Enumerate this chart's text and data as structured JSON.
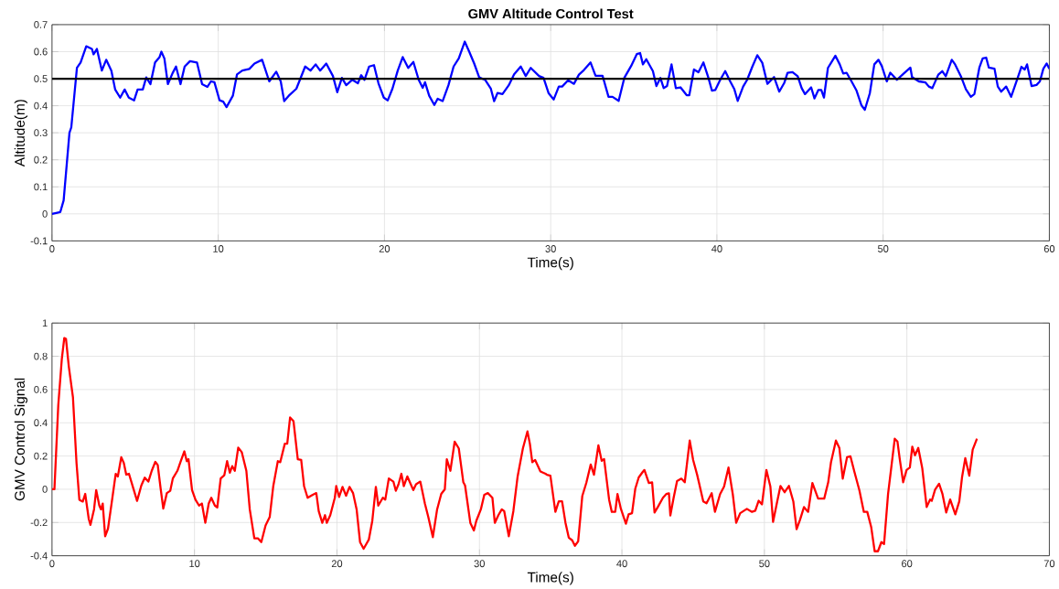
{
  "chart_data": [
    {
      "type": "line",
      "title": "GMV Altitude Control Test",
      "xlabel": "Time(s)",
      "ylabel": "Altitude(m)",
      "grid": true,
      "xlim": [
        0,
        60
      ],
      "ylim": [
        -0.1,
        0.7
      ],
      "xticks": [
        0,
        10,
        20,
        30,
        40,
        50,
        60
      ],
      "yticks": [
        -0.1,
        0,
        0.1,
        0.2,
        0.3,
        0.4,
        0.5,
        0.6,
        0.7
      ],
      "x": [
        0,
        0.5,
        0.7,
        1.05,
        1.16,
        1.5,
        1.72,
        2.06,
        2.4,
        2.5,
        2.7,
        3.0,
        3.26,
        3.57,
        3.8,
        4.1,
        4.37,
        4.62,
        4.94,
        5.15,
        5.46,
        5.67,
        5.92,
        6.2,
        6.47,
        6.58,
        6.76,
        6.97,
        7.25,
        7.46,
        7.73,
        7.98,
        8.3,
        8.72,
        9.03,
        9.35,
        9.56,
        9.77,
        10.08,
        10.3,
        10.5,
        10.88,
        11.13,
        11.45,
        11.87,
        12.18,
        12.64,
        13.07,
        13.49,
        13.76,
        13.97,
        14.29,
        14.7,
        15.23,
        15.55,
        15.86,
        16.13,
        16.5,
        16.9,
        17.16,
        17.44,
        17.7,
        18.07,
        18.4,
        18.6,
        18.8,
        19.08,
        19.37,
        19.64,
        19.96,
        20.2,
        20.48,
        20.8,
        21.1,
        21.43,
        21.74,
        22.06,
        22.3,
        22.44,
        22.69,
        23.0,
        23.2,
        23.5,
        23.85,
        24.16,
        24.47,
        24.83,
        25.1,
        25.4,
        25.7,
        26.05,
        26.4,
        26.6,
        26.8,
        27.1,
        27.48,
        27.8,
        28.2,
        28.5,
        28.8,
        29.3,
        29.57,
        29.88,
        30.18,
        30.49,
        30.69,
        31.05,
        31.4,
        31.7,
        32.0,
        32.4,
        32.7,
        33.12,
        33.48,
        33.72,
        34.09,
        34.43,
        34.84,
        35.18,
        35.38,
        35.55,
        35.75,
        36.15,
        36.36,
        36.6,
        36.8,
        37.0,
        37.27,
        37.53,
        37.81,
        38.18,
        38.34,
        38.62,
        38.89,
        39.19,
        39.49,
        39.7,
        39.9,
        40.2,
        40.5,
        40.8,
        41.05,
        41.25,
        41.58,
        41.82,
        42.13,
        42.43,
        42.73,
        43.04,
        43.44,
        43.75,
        44.05,
        44.25,
        44.55,
        44.86,
        45.1,
        45.3,
        45.67,
        45.87,
        46.1,
        46.28,
        46.44,
        46.68,
        46.88,
        47.13,
        47.39,
        47.6,
        47.8,
        48.1,
        48.4,
        48.7,
        48.9,
        49.2,
        49.47,
        49.72,
        49.92,
        50.22,
        50.43,
        50.83,
        51.24,
        51.64,
        51.74,
        52.15,
        52.55,
        52.75,
        52.96,
        53.32,
        53.56,
        53.77,
        54.13,
        54.33,
        54.68,
        54.98,
        55.28,
        55.49,
        55.79,
        55.99,
        56.2,
        56.36,
        56.7,
        56.9,
        57.1,
        57.4,
        57.7,
        58.02,
        58.32,
        58.52,
        58.66,
        58.93,
        59.23,
        59.43,
        59.64,
        59.84,
        60.0
      ],
      "series": [
        {
          "color": "#0000ff",
          "values": [
            0,
            0.007,
            0.05,
            0.3,
            0.32,
            0.54,
            0.56,
            0.62,
            0.61,
            0.59,
            0.61,
            0.53,
            0.57,
            0.53,
            0.46,
            0.43,
            0.46,
            0.43,
            0.42,
            0.46,
            0.46,
            0.505,
            0.48,
            0.56,
            0.58,
            0.6,
            0.575,
            0.48,
            0.52,
            0.545,
            0.48,
            0.545,
            0.565,
            0.56,
            0.48,
            0.47,
            0.49,
            0.487,
            0.42,
            0.415,
            0.395,
            0.437,
            0.516,
            0.53,
            0.536,
            0.556,
            0.57,
            0.49,
            0.526,
            0.49,
            0.417,
            0.44,
            0.463,
            0.545,
            0.53,
            0.553,
            0.53,
            0.556,
            0.51,
            0.45,
            0.503,
            0.476,
            0.496,
            0.483,
            0.513,
            0.496,
            0.545,
            0.55,
            0.483,
            0.43,
            0.42,
            0.463,
            0.53,
            0.58,
            0.54,
            0.562,
            0.496,
            0.466,
            0.487,
            0.437,
            0.403,
            0.426,
            0.417,
            0.476,
            0.545,
            0.575,
            0.637,
            0.6,
            0.556,
            0.505,
            0.496,
            0.463,
            0.417,
            0.447,
            0.443,
            0.476,
            0.516,
            0.545,
            0.51,
            0.54,
            0.51,
            0.503,
            0.446,
            0.423,
            0.471,
            0.471,
            0.494,
            0.481,
            0.515,
            0.532,
            0.56,
            0.511,
            0.511,
            0.433,
            0.433,
            0.418,
            0.503,
            0.547,
            0.591,
            0.595,
            0.553,
            0.572,
            0.528,
            0.473,
            0.503,
            0.465,
            0.473,
            0.553,
            0.465,
            0.468,
            0.439,
            0.439,
            0.534,
            0.524,
            0.56,
            0.503,
            0.456,
            0.458,
            0.496,
            0.528,
            0.49,
            0.461,
            0.418,
            0.471,
            0.496,
            0.544,
            0.587,
            0.559,
            0.481,
            0.506,
            0.452,
            0.484,
            0.522,
            0.524,
            0.509,
            0.465,
            0.443,
            0.468,
            0.427,
            0.458,
            0.458,
            0.43,
            0.54,
            0.56,
            0.585,
            0.553,
            0.519,
            0.522,
            0.49,
            0.456,
            0.401,
            0.385,
            0.446,
            0.553,
            0.57,
            0.547,
            0.49,
            0.522,
            0.496,
            0.519,
            0.541,
            0.506,
            0.49,
            0.486,
            0.471,
            0.465,
            0.515,
            0.528,
            0.509,
            0.57,
            0.553,
            0.509,
            0.461,
            0.433,
            0.443,
            0.541,
            0.575,
            0.578,
            0.541,
            0.537,
            0.471,
            0.452,
            0.471,
            0.433,
            0.49,
            0.544,
            0.534,
            0.553,
            0.473,
            0.477,
            0.49,
            0.537,
            0.556,
            0.537
          ]
        }
      ],
      "ref_lines": [
        {
          "axis": "y",
          "value": 0.5,
          "color": "#000000"
        }
      ]
    },
    {
      "type": "line",
      "xlabel": "Time(s)",
      "ylabel": "GMV Control Signal",
      "grid": true,
      "xlim": [
        0,
        70
      ],
      "ylim": [
        -0.4,
        1
      ],
      "xticks": [
        0,
        10,
        20,
        30,
        40,
        50,
        60,
        70
      ],
      "yticks": [
        -0.4,
        -0.2,
        0,
        0.2,
        0.4,
        0.6,
        0.8,
        1
      ],
      "x": [
        0,
        0.17,
        0.44,
        0.69,
        0.86,
        0.98,
        1.18,
        1.47,
        1.72,
        1.92,
        2.16,
        2.33,
        2.58,
        2.7,
        2.95,
        3.1,
        3.32,
        3.44,
        3.56,
        3.73,
        3.93,
        4.18,
        4.47,
        4.62,
        4.86,
        5.04,
        5.21,
        5.4,
        5.7,
        5.97,
        6.27,
        6.51,
        6.76,
        7.0,
        7.25,
        7.42,
        7.62,
        7.81,
        8.06,
        8.3,
        8.48,
        8.8,
        9.04,
        9.29,
        9.46,
        9.58,
        9.83,
        10.07,
        10.32,
        10.52,
        10.76,
        11.0,
        11.18,
        11.43,
        11.6,
        11.84,
        12.09,
        12.29,
        12.48,
        12.65,
        12.83,
        13.07,
        13.32,
        13.64,
        13.88,
        14.2,
        14.45,
        14.69,
        14.99,
        15.28,
        15.53,
        15.85,
        16.02,
        16.34,
        16.51,
        16.71,
        16.95,
        17.25,
        17.49,
        17.69,
        17.94,
        18.3,
        18.55,
        18.72,
        18.97,
        19.16,
        19.29,
        19.53,
        19.85,
        19.95,
        20.15,
        20.39,
        20.64,
        20.88,
        21.13,
        21.38,
        21.62,
        21.87,
        22.24,
        22.48,
        22.73,
        22.9,
        23.22,
        23.39,
        23.64,
        23.96,
        24.13,
        24.32,
        24.52,
        24.69,
        24.94,
        25.18,
        25.36,
        25.55,
        25.85,
        26.17,
        26.41,
        26.73,
        27.03,
        27.32,
        27.57,
        27.71,
        27.96,
        28.26,
        28.55,
        28.87,
        28.99,
        29.36,
        29.61,
        29.78,
        30.1,
        30.34,
        30.59,
        30.91,
        31.08,
        31.33,
        31.57,
        31.74,
        32.06,
        32.38,
        32.68,
        33.05,
        33.37,
        33.54,
        33.71,
        33.91,
        34.28,
        34.64,
        34.74,
        34.98,
        35.33,
        35.57,
        35.8,
        36.04,
        36.27,
        36.51,
        36.7,
        36.93,
        37.22,
        37.5,
        37.81,
        38.04,
        38.35,
        38.58,
        38.75,
        39.1,
        39.29,
        39.53,
        39.69,
        39.93,
        40.28,
        40.47,
        40.71,
        40.94,
        41.18,
        41.46,
        41.58,
        41.89,
        42.12,
        42.29,
        42.52,
        42.88,
        43.11,
        43.3,
        43.4,
        43.63,
        43.87,
        44.17,
        44.41,
        44.76,
        45.0,
        45.28,
        45.71,
        45.94,
        46.3,
        46.53,
        46.89,
        47.17,
        47.48,
        47.78,
        48.02,
        48.3,
        48.77,
        49.13,
        49.36,
        49.6,
        49.83,
        50.14,
        50.42,
        50.61,
        50.9,
        51.13,
        51.42,
        51.72,
        52.03,
        52.26,
        52.5,
        52.78,
        53.07,
        53.37,
        53.77,
        54.2,
        54.48,
        54.67,
        55.02,
        55.26,
        55.5,
        55.8,
        56.04,
        56.32,
        56.67,
        56.98,
        57.22,
        57.5,
        57.74,
        57.97,
        58.21,
        58.4,
        58.68,
        59.15,
        59.34,
        59.5,
        59.74,
        59.98,
        60.21,
        60.38,
        60.57,
        60.8,
        61.08,
        61.39,
        61.63,
        61.75,
        61.98,
        62.26,
        62.5,
        62.76,
        63.04,
        63.4,
        63.68,
        63.87,
        64.1,
        64.38,
        64.62,
        64.92
      ],
      "series": [
        {
          "color": "#ff0000",
          "values": [
            0,
            0,
            0.506,
            0.785,
            0.91,
            0.905,
            0.738,
            0.553,
            0.158,
            -0.063,
            -0.074,
            -0.028,
            -0.179,
            -0.214,
            -0.121,
            -0.005,
            -0.098,
            -0.121,
            -0.086,
            -0.283,
            -0.237,
            -0.086,
            0.093,
            0.077,
            0.193,
            0.158,
            0.088,
            0.093,
            0.007,
            -0.07,
            0.023,
            0.07,
            0.046,
            0.111,
            0.165,
            0.146,
            0.007,
            -0.116,
            -0.023,
            -0.009,
            0.065,
            0.111,
            0.169,
            0.228,
            0.169,
            0.181,
            -0.005,
            -0.063,
            -0.098,
            -0.086,
            -0.202,
            -0.086,
            -0.051,
            -0.098,
            -0.109,
            0.065,
            0.084,
            0.169,
            0.1,
            0.139,
            0.111,
            0.251,
            0.223,
            0.111,
            -0.121,
            -0.295,
            -0.295,
            -0.318,
            -0.218,
            -0.167,
            0.019,
            0.169,
            0.163,
            0.274,
            0.274,
            0.432,
            0.409,
            0.181,
            0.176,
            0.019,
            -0.051,
            -0.033,
            -0.023,
            -0.132,
            -0.202,
            -0.156,
            -0.202,
            -0.156,
            -0.051,
            0.019,
            -0.046,
            0.014,
            -0.039,
            0.014,
            -0.023,
            -0.121,
            -0.318,
            -0.358,
            -0.302,
            -0.19,
            0.014,
            -0.098,
            -0.051,
            -0.063,
            0.065,
            0.046,
            -0.009,
            0.03,
            0.093,
            0.019,
            0.077,
            0.03,
            -0.005,
            0.03,
            0.046,
            -0.086,
            -0.167,
            -0.288,
            -0.121,
            -0.028,
            0,
            0.181,
            0.111,
            0.286,
            0.246,
            0.042,
            0.023,
            -0.202,
            -0.248,
            -0.19,
            -0.121,
            -0.033,
            -0.023,
            -0.051,
            -0.202,
            -0.156,
            -0.121,
            -0.132,
            -0.283,
            -0.132,
            0.077,
            0.246,
            0.348,
            0.274,
            0.163,
            0.176,
            0.107,
            0.093,
            0.087,
            0.082,
            -0.136,
            -0.073,
            -0.073,
            -0.202,
            -0.291,
            -0.307,
            -0.34,
            -0.313,
            -0.04,
            0.038,
            0.149,
            0.087,
            0.264,
            0.171,
            0.182,
            -0.062,
            -0.136,
            -0.136,
            -0.029,
            -0.118,
            -0.207,
            -0.151,
            -0.144,
            0.004,
            0.071,
            0.104,
            0.116,
            0.038,
            0.042,
            -0.14,
            -0.107,
            -0.051,
            -0.029,
            -0.024,
            -0.158,
            -0.051,
            0.049,
            0.064,
            0.042,
            0.293,
            0.176,
            0.087,
            -0.073,
            -0.084,
            -0.024,
            -0.136,
            -0.029,
            0.016,
            0.131,
            -0.029,
            -0.202,
            -0.144,
            -0.118,
            -0.136,
            -0.129,
            -0.069,
            -0.091,
            0.116,
            0.016,
            -0.196,
            -0.073,
            0.02,
            -0.018,
            0.02,
            -0.073,
            -0.24,
            -0.184,
            -0.107,
            -0.136,
            0.038,
            -0.056,
            -0.056,
            0.042,
            0.16,
            0.293,
            0.249,
            0.064,
            0.193,
            0.198,
            0.104,
            -0.007,
            -0.136,
            -0.136,
            -0.229,
            -0.373,
            -0.373,
            -0.318,
            -0.329,
            -0.029,
            0.304,
            0.287,
            0.182,
            0.042,
            0.116,
            0.131,
            0.256,
            0.204,
            0.249,
            0.127,
            -0.107,
            -0.062,
            -0.069,
            -0.002,
            0.033,
            -0.029,
            -0.14,
            -0.062,
            -0.151,
            -0.073,
            0.071,
            0.187,
            0.082,
            0.238,
            0.304
          ]
        }
      ]
    }
  ]
}
